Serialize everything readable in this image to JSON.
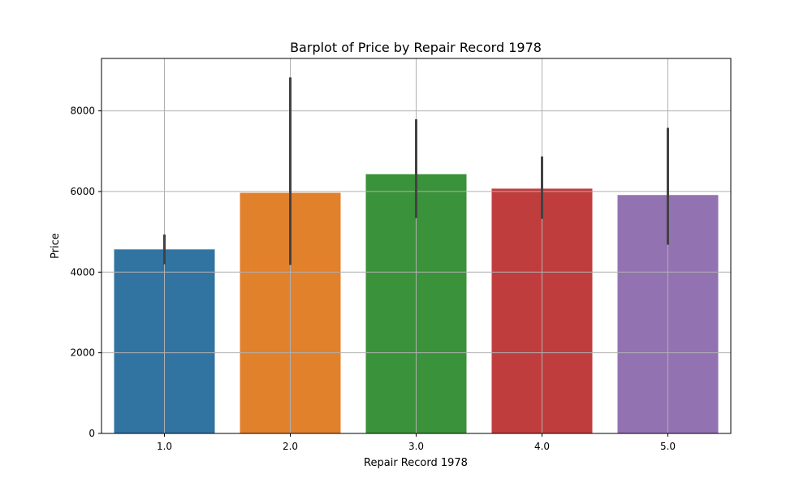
{
  "chart_data": {
    "type": "bar",
    "title": "Barplot of Price by Repair Record 1978",
    "xlabel": "Repair Record 1978",
    "ylabel": "Price",
    "categories": [
      "1.0",
      "2.0",
      "3.0",
      "4.0",
      "5.0"
    ],
    "values": [
      4564,
      5968,
      6430,
      6071,
      5913
    ],
    "error_low": [
      4195,
      4180,
      5340,
      5320,
      4680
    ],
    "error_high": [
      4934,
      8830,
      7790,
      6870,
      7580
    ],
    "colors": [
      "#3274a1",
      "#e1812c",
      "#3a923a",
      "#c03d3e",
      "#9372b2"
    ],
    "error_color": "#424242",
    "ylim": [
      0,
      9300
    ],
    "yticks": [
      0,
      2000,
      4000,
      6000,
      8000
    ],
    "ytick_labels": [
      "0",
      "2000",
      "4000",
      "6000",
      "8000"
    ],
    "grid": true,
    "legend": "none"
  }
}
